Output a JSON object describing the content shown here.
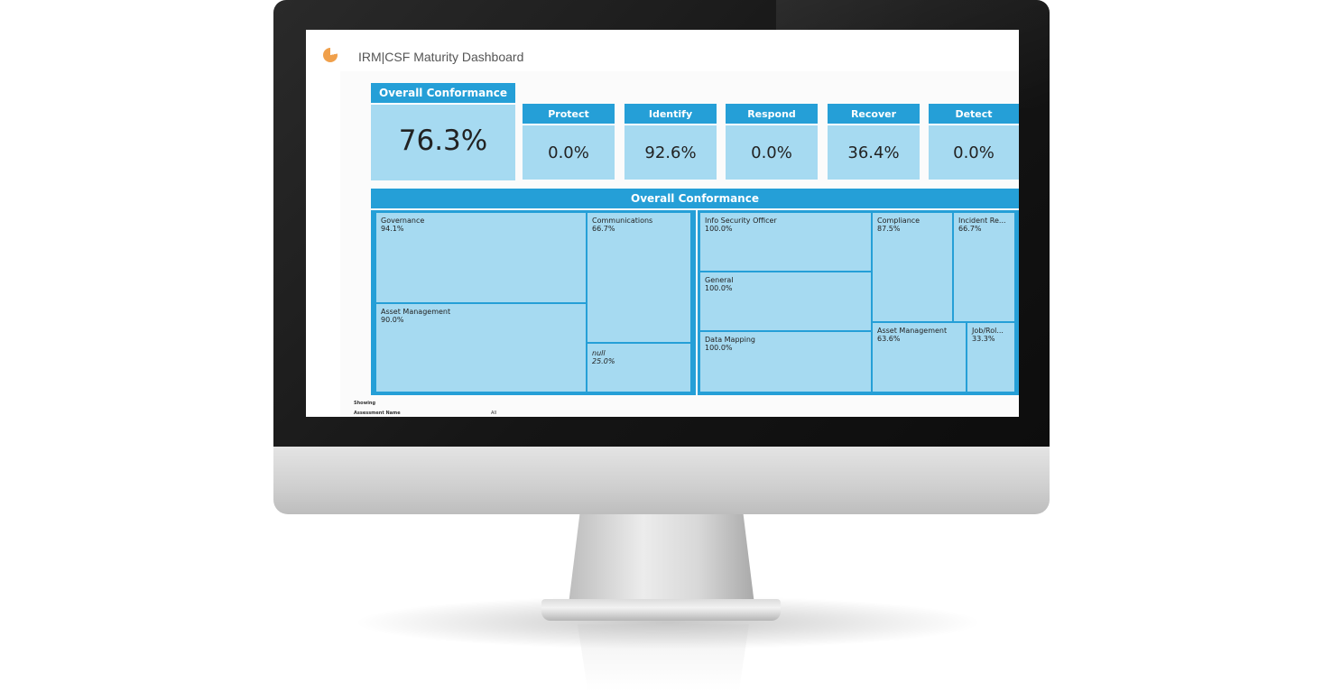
{
  "app": {
    "title": "IRM|CSF Maturity Dashboard",
    "icon": "pie-chart-icon",
    "icon_color": "#f0a04b"
  },
  "colors": {
    "header_blue": "#259fd7",
    "tile_light_blue": "#a6daf1"
  },
  "overall": {
    "label": "Overall Conformance",
    "value": "76.3%"
  },
  "functions": [
    {
      "label": "Protect",
      "value": "0.0%"
    },
    {
      "label": "Identify",
      "value": "92.6%"
    },
    {
      "label": "Respond",
      "value": "0.0%"
    },
    {
      "label": "Recover",
      "value": "36.4%"
    },
    {
      "label": "Detect",
      "value": "0.0%"
    }
  ],
  "treemap": {
    "title": "Overall Conformance",
    "left_cells": [
      {
        "name": "Governance",
        "value": "94.1%"
      },
      {
        "name": "Asset Management",
        "value": "90.0%"
      },
      {
        "name": "Communications",
        "value": "66.7%"
      },
      {
        "name": "null",
        "value": "25.0%"
      }
    ],
    "right_cells": [
      {
        "name": "Info Security Officer",
        "value": "100.0%"
      },
      {
        "name": "General",
        "value": "100.0%"
      },
      {
        "name": "Data Mapping",
        "value": "100.0%"
      },
      {
        "name": "Compliance",
        "value": "87.5%"
      },
      {
        "name": "Incident Re...",
        "value": "66.7%"
      },
      {
        "name": "Asset Management",
        "value": "63.6%"
      },
      {
        "name": "Job/Rol...",
        "value": "33.3%"
      }
    ]
  },
  "filters": {
    "showing_label": "Showing",
    "assessment_label": "Assessment Name",
    "assessment_value": "All"
  }
}
